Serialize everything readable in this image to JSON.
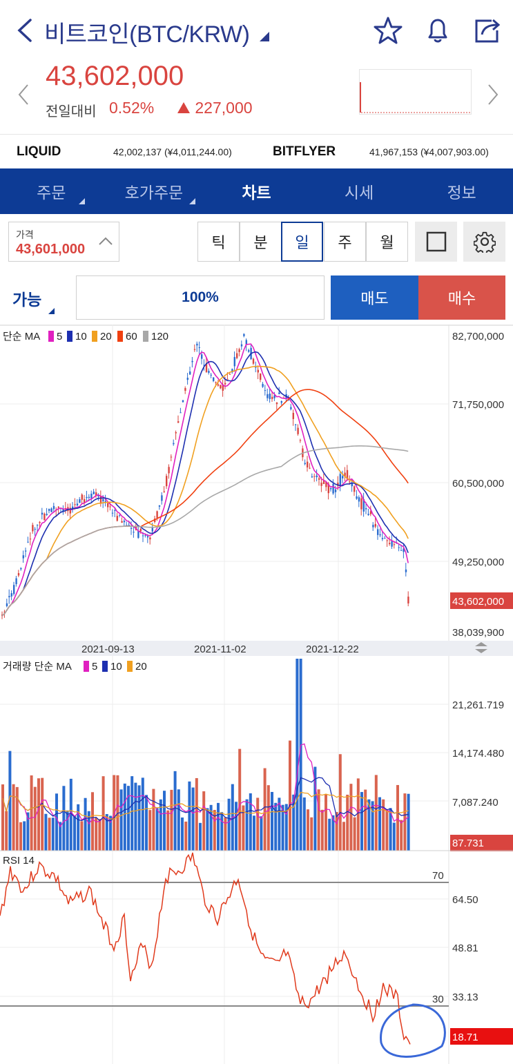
{
  "header": {
    "title": "비트코인(BTC/KRW)",
    "price": "43,602,000",
    "prev_label": "전일대비",
    "change_pct": "0.52%",
    "change_abs": "227,000",
    "up_color": "#d9443f",
    "icons": [
      "back-icon",
      "star-icon",
      "bell-icon",
      "share-icon"
    ]
  },
  "exchanges": [
    {
      "name": "LIQUID",
      "value": "42,002,137 (¥4,011,244.00)"
    },
    {
      "name": "BITFLYER",
      "value": "41,967,153 (¥4,007,903.00)"
    }
  ],
  "tabs": [
    {
      "label": "주문"
    },
    {
      "label": "호가주문"
    },
    {
      "label": "차트",
      "active": true
    },
    {
      "label": "시세"
    },
    {
      "label": "정보"
    }
  ],
  "toolbar": {
    "price_label": "가격",
    "price_value": "43,601,000",
    "periods": [
      "틱",
      "분",
      "일",
      "주",
      "월"
    ],
    "active_period": "일"
  },
  "order": {
    "able_label": "가능",
    "ratio": "100%",
    "sell_label": "매도",
    "buy_label": "매수"
  },
  "chart_data": [
    {
      "type": "candlestick",
      "legend": {
        "label": "단순 MA",
        "periods": [
          "5",
          "10",
          "20",
          "60",
          "120"
        ],
        "colors": [
          "#e020c0",
          "#1d2fb0",
          "#f0a020",
          "#f04010",
          "#a8a8a8"
        ]
      },
      "y_ticks": [
        "82,700,000",
        "71,750,000",
        "60,500,000",
        "49,250,000",
        "38,039,900"
      ],
      "current_label": "43,602,000",
      "x_ticks": [
        "2021-09-13",
        "2021-11-02",
        "2021-12-22"
      ],
      "ylim": [
        38039900,
        82700000
      ]
    },
    {
      "type": "bar",
      "legend": {
        "label": "거래량 단순 MA",
        "periods": [
          "5",
          "10",
          "20"
        ],
        "colors": [
          "#e020c0",
          "#1d2fb0",
          "#f0a020"
        ]
      },
      "y_ticks": [
        "21,261.719",
        "14,174.480",
        "7,087.240"
      ],
      "current_label": "87.731"
    },
    {
      "type": "line",
      "legend": {
        "label": "RSI 14"
      },
      "y_ticks": [
        "64.50",
        "48.81",
        "33.13"
      ],
      "levels": [
        "70",
        "30"
      ],
      "current_label": "18.71"
    }
  ]
}
